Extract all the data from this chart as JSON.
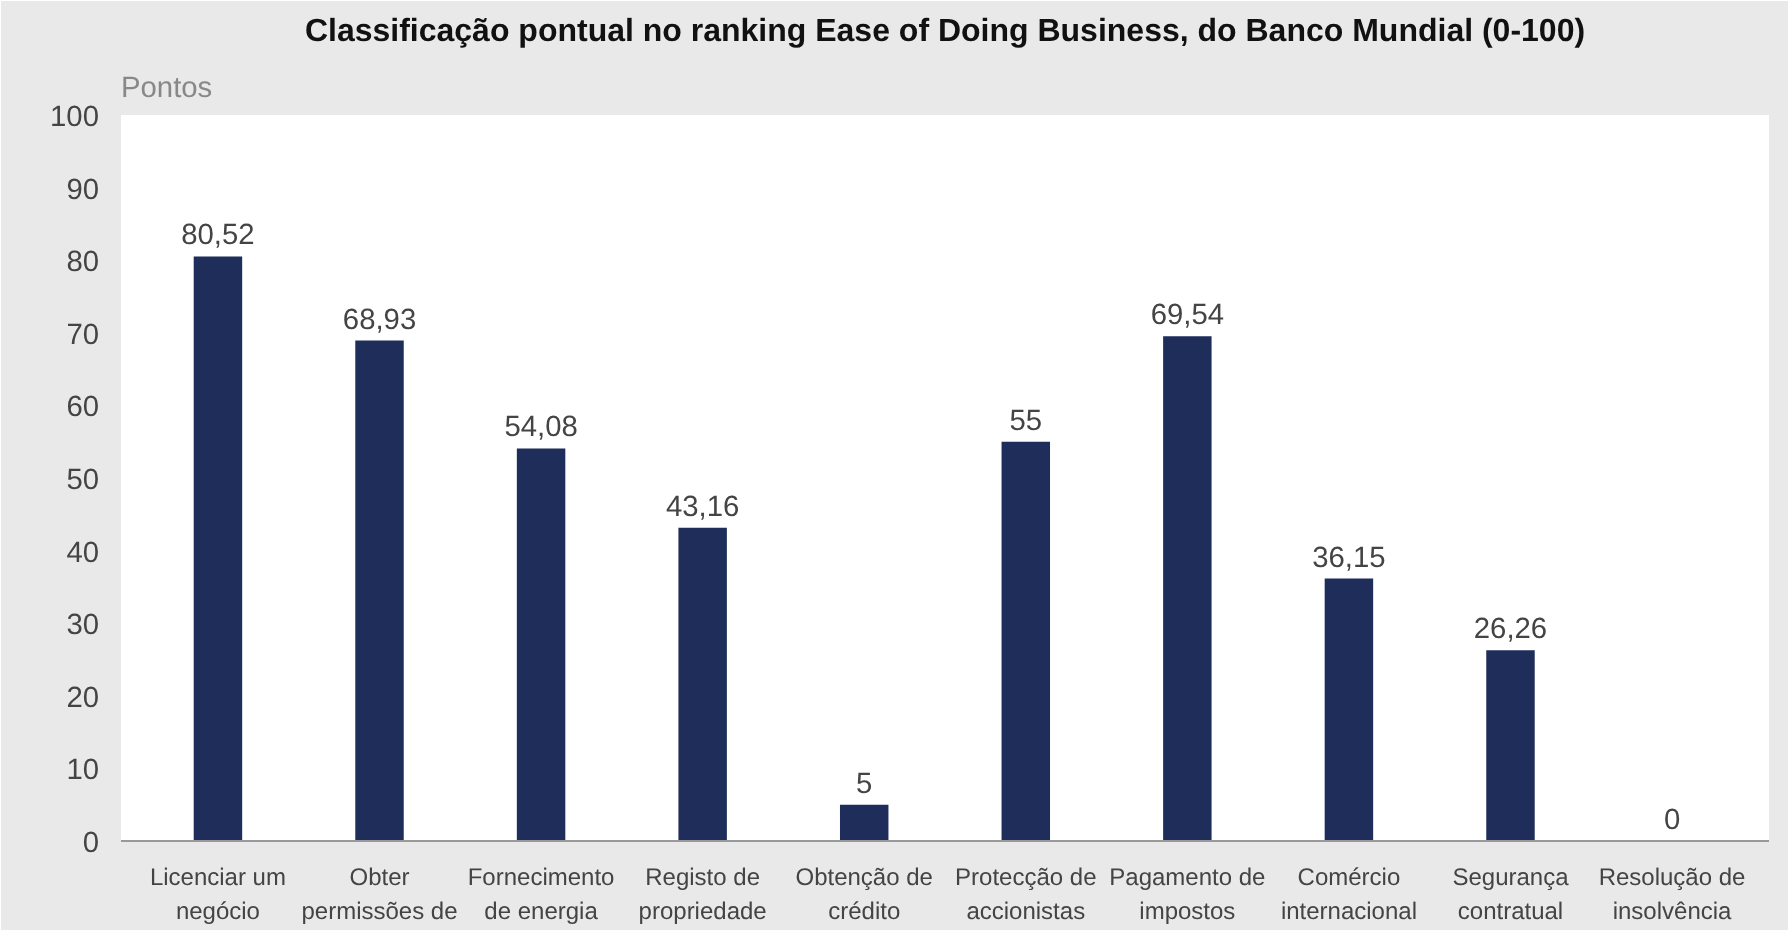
{
  "chart_data": {
    "type": "bar",
    "title": "Classificação pontual no ranking Ease of Doing Business, do Banco Mundial (0-100)",
    "ylabel": "Pontos",
    "categories": [
      "Licenciar um negócio",
      "Obter permissões de",
      "Fornecimento de energia",
      "Registo de propriedade",
      "Obtenção de crédito",
      "Protecção de accionistas",
      "Pagamento de impostos",
      "Comércio internacional",
      "Segurança contratual",
      "Resolução de insolvência"
    ],
    "values": [
      80.52,
      68.93,
      54.08,
      43.16,
      5,
      55,
      69.54,
      36.15,
      26.26,
      0
    ],
    "value_labels": [
      "80,52",
      "68,93",
      "54,08",
      "43,16",
      "5",
      "55",
      "69,54",
      "36,15",
      "26,26",
      "0"
    ],
    "color": "#1f2d5b",
    "ylim": [
      0,
      100
    ],
    "yticks": [
      0,
      10,
      20,
      30,
      40,
      50,
      60,
      70,
      80,
      90,
      100
    ],
    "grid": false
  }
}
